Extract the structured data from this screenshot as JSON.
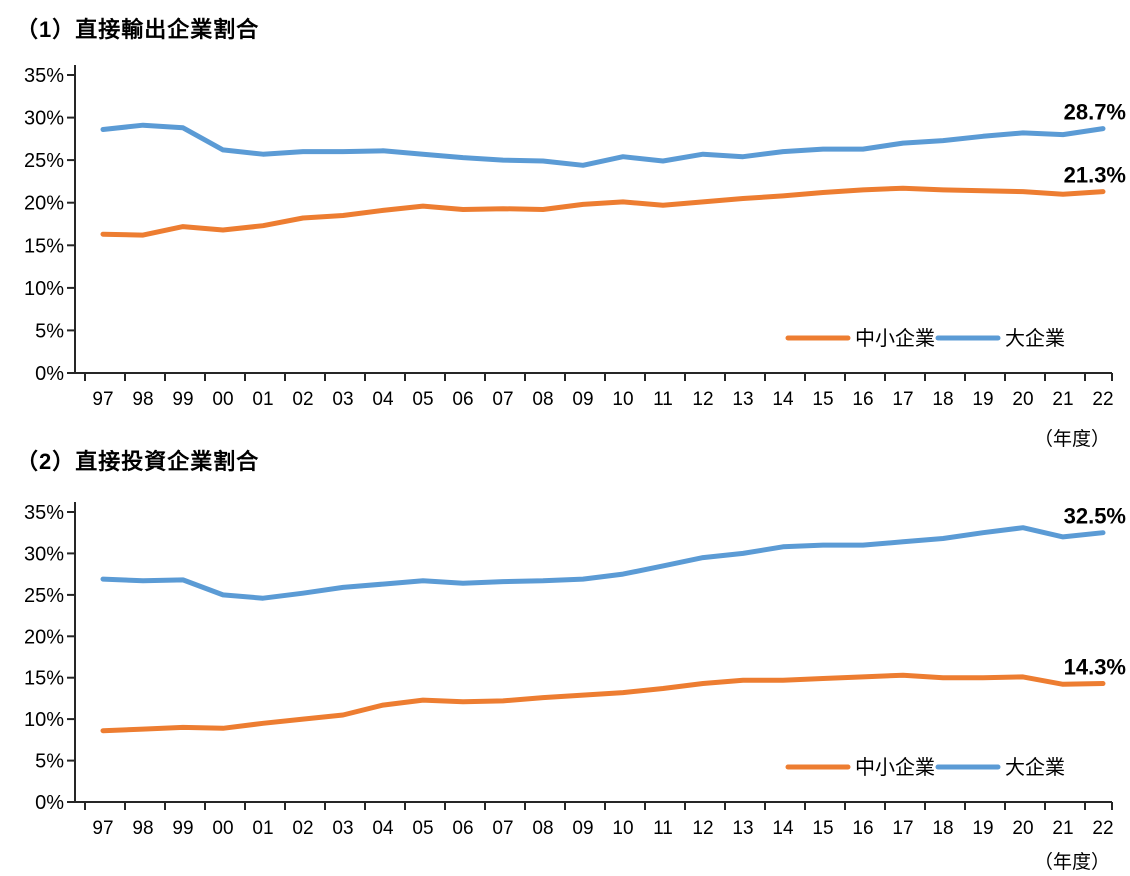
{
  "colors": {
    "sme_orange": "#ED7D31",
    "large_blue": "#5B9BD5",
    "axis": "#262626"
  },
  "chart_data": [
    {
      "type": "line",
      "title": "（1）直接輸出企業割合",
      "x_axis_label": "（年度）",
      "categories": [
        "97",
        "98",
        "99",
        "00",
        "01",
        "02",
        "03",
        "04",
        "05",
        "06",
        "07",
        "08",
        "09",
        "10",
        "11",
        "12",
        "13",
        "14",
        "15",
        "16",
        "17",
        "18",
        "19",
        "20",
        "21",
        "22"
      ],
      "ylim": [
        0,
        35
      ],
      "y_tick_step": 5,
      "y_tick_labels": [
        "35%",
        "30%",
        "25%",
        "20%",
        "15%",
        "10%",
        "5%",
        "0%"
      ],
      "grid": false,
      "legend_position": "inside-bottom-right",
      "series": [
        {
          "key": "sme",
          "name": "中小企業",
          "color": "#ED7D31",
          "end_label": "21.3%",
          "values": [
            16.3,
            16.2,
            17.2,
            16.8,
            17.3,
            18.2,
            18.5,
            19.1,
            19.6,
            19.2,
            19.3,
            19.2,
            19.8,
            20.1,
            19.7,
            20.1,
            20.5,
            20.8,
            21.2,
            21.5,
            21.7,
            21.5,
            21.4,
            21.3,
            21.0,
            21.3
          ]
        },
        {
          "key": "large",
          "name": "大企業",
          "color": "#5B9BD5",
          "end_label": "28.7%",
          "values": [
            28.6,
            29.1,
            28.8,
            26.2,
            25.7,
            26.0,
            26.0,
            26.1,
            25.7,
            25.3,
            25.0,
            24.9,
            24.4,
            25.4,
            24.9,
            25.7,
            25.4,
            26.0,
            26.3,
            26.3,
            27.0,
            27.3,
            27.8,
            28.2,
            28.0,
            28.7
          ]
        }
      ]
    },
    {
      "type": "line",
      "title": "（2）直接投資企業割合",
      "x_axis_label": "（年度）",
      "categories": [
        "97",
        "98",
        "99",
        "00",
        "01",
        "02",
        "03",
        "04",
        "05",
        "06",
        "07",
        "08",
        "09",
        "10",
        "11",
        "12",
        "13",
        "14",
        "15",
        "16",
        "17",
        "18",
        "19",
        "20",
        "21",
        "22"
      ],
      "ylim": [
        0,
        35
      ],
      "y_tick_step": 5,
      "y_tick_labels": [
        "35%",
        "30%",
        "25%",
        "20%",
        "15%",
        "10%",
        "5%",
        "0%"
      ],
      "grid": false,
      "legend_position": "inside-bottom-right",
      "series": [
        {
          "key": "sme",
          "name": "中小企業",
          "color": "#ED7D31",
          "end_label": "14.3%",
          "values": [
            8.6,
            8.8,
            9.0,
            8.9,
            9.5,
            10.0,
            10.5,
            11.7,
            12.3,
            12.1,
            12.2,
            12.6,
            12.9,
            13.2,
            13.7,
            14.3,
            14.7,
            14.7,
            14.9,
            15.1,
            15.3,
            15.0,
            15.0,
            15.1,
            14.2,
            14.3
          ]
        },
        {
          "key": "large",
          "name": "大企業",
          "color": "#5B9BD5",
          "end_label": "32.5%",
          "values": [
            26.9,
            26.7,
            26.8,
            25.0,
            24.6,
            25.2,
            25.9,
            26.3,
            26.7,
            26.4,
            26.6,
            26.7,
            26.9,
            27.5,
            28.5,
            29.5,
            30.0,
            30.8,
            31.0,
            31.0,
            31.4,
            31.8,
            32.5,
            33.1,
            32.0,
            32.5
          ]
        }
      ]
    }
  ]
}
